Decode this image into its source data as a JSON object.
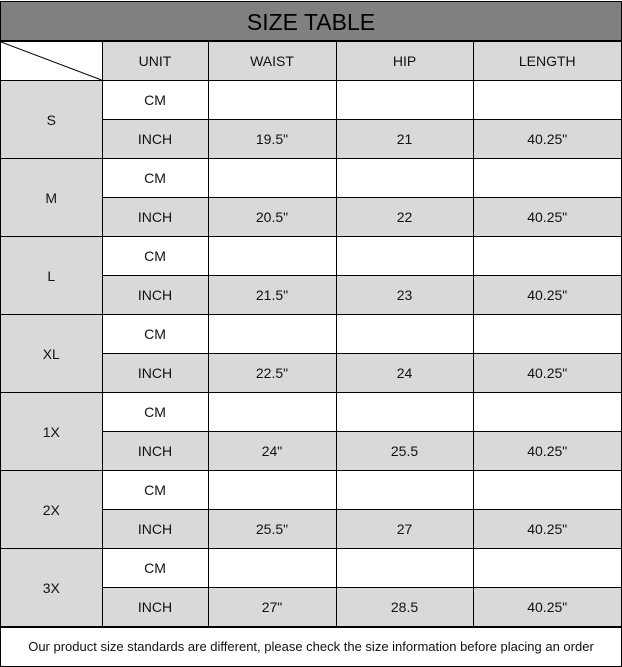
{
  "title": "SIZE TABLE",
  "headers": {
    "unit": "UNIT",
    "waist": "WAIST",
    "hip": "HIP",
    "length": "LENGTH"
  },
  "colors": {
    "title_bg": "#808080",
    "shade": "#d9d9d9"
  },
  "sizes": [
    {
      "size": "S",
      "cm_label": "CM",
      "inch_label": "INCH",
      "cm": {
        "waist": "",
        "hip": "",
        "length": ""
      },
      "inch": {
        "waist": "19.5\"",
        "hip": "21",
        "length": "40.25\""
      }
    },
    {
      "size": "M",
      "cm_label": "CM",
      "inch_label": "INCH",
      "cm": {
        "waist": "",
        "hip": "",
        "length": ""
      },
      "inch": {
        "waist": "20.5\"",
        "hip": "22",
        "length": "40.25\""
      }
    },
    {
      "size": "L",
      "cm_label": "CM",
      "inch_label": "INCH",
      "cm": {
        "waist": "",
        "hip": "",
        "length": ""
      },
      "inch": {
        "waist": "21.5\"",
        "hip": "23",
        "length": "40.25\""
      }
    },
    {
      "size": "XL",
      "cm_label": "CM",
      "inch_label": "INCH",
      "cm": {
        "waist": "",
        "hip": "",
        "length": ""
      },
      "inch": {
        "waist": "22.5\"",
        "hip": "24",
        "length": "40.25\""
      }
    },
    {
      "size": "1X",
      "cm_label": "CM",
      "inch_label": "INCH",
      "cm": {
        "waist": "",
        "hip": "",
        "length": ""
      },
      "inch": {
        "waist": "24\"",
        "hip": "25.5",
        "length": "40.25\""
      }
    },
    {
      "size": "2X",
      "cm_label": "CM",
      "inch_label": "INCH",
      "cm": {
        "waist": "",
        "hip": "",
        "length": ""
      },
      "inch": {
        "waist": "25.5\"",
        "hip": "27",
        "length": "40.25\""
      }
    },
    {
      "size": "3X",
      "cm_label": "CM",
      "inch_label": "INCH",
      "cm": {
        "waist": "",
        "hip": "",
        "length": ""
      },
      "inch": {
        "waist": "27\"",
        "hip": "28.5",
        "length": "40.25\""
      }
    }
  ],
  "footer": "Our product size standards are different, please check the size information before placing an order"
}
